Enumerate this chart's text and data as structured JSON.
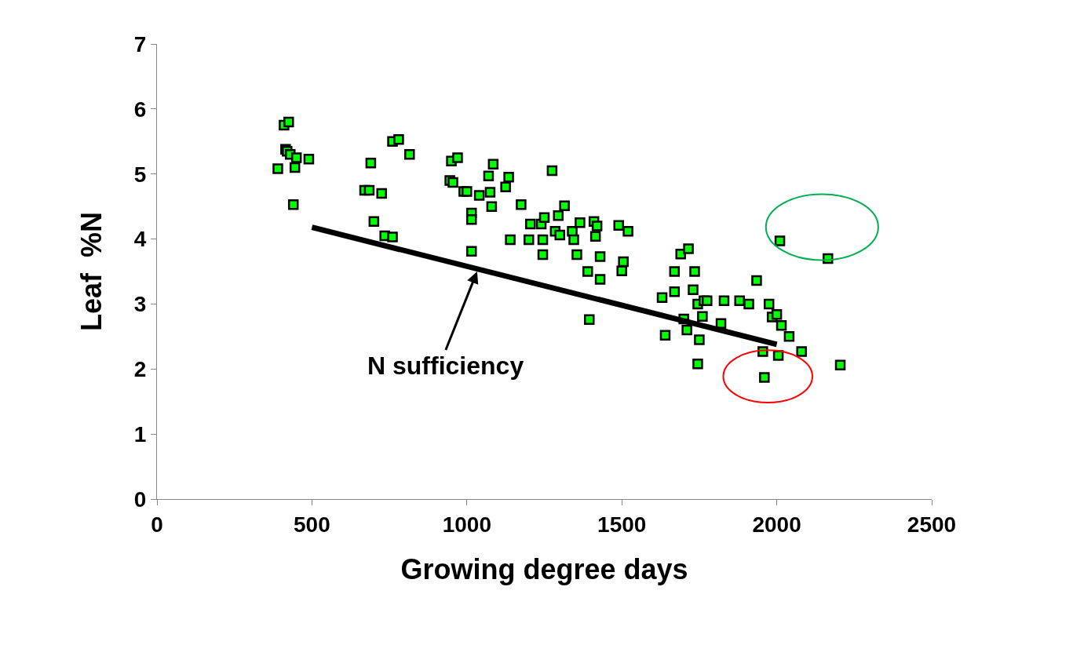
{
  "chart_data": {
    "type": "scatter",
    "xlabel": "Growing degree days",
    "ylabel": "Leaf  %N",
    "xlim": [
      0,
      2500
    ],
    "xticks": [
      0,
      500,
      1000,
      1500,
      2000,
      2500
    ],
    "ylim": [
      0,
      7
    ],
    "yticks": [
      0,
      1,
      2,
      3,
      4,
      5,
      6,
      7
    ],
    "marker": "square",
    "annotations": [
      {
        "text": "N sufficiency",
        "x": 1033,
        "y": 3.5
      }
    ],
    "series": [
      {
        "color": "#00ff00",
        "x": [
          390,
          410,
          425,
          415,
          420,
          430,
          450,
          445,
          440,
          490,
          670,
          685,
          690,
          700,
          725,
          735,
          760,
          760,
          780,
          815,
          945,
          950,
          955,
          970,
          990,
          1000,
          1015,
          1015,
          1015,
          1040,
          1070,
          1075,
          1080,
          1085,
          1125,
          1135,
          1140,
          1175,
          1200,
          1205,
          1240,
          1245,
          1245,
          1250,
          1275,
          1285,
          1295,
          1300,
          1315,
          1340,
          1345,
          1355,
          1365,
          1390,
          1395,
          1410,
          1415,
          1420,
          1430,
          1430,
          1490,
          1500,
          1505,
          1520,
          1630,
          1640,
          1670,
          1670,
          1690,
          1700,
          1710,
          1715,
          1730,
          1735,
          1745,
          1745,
          1750,
          1760,
          1765,
          1775,
          1820,
          1830,
          1880,
          1910,
          1935,
          1955,
          1960,
          1975,
          1985,
          2000,
          2005,
          2010,
          2015,
          2040,
          2080,
          2165,
          2205
        ],
        "values": [
          5.08,
          5.75,
          5.8,
          5.38,
          5.35,
          5.3,
          5.25,
          5.1,
          4.53,
          5.23,
          4.75,
          4.75,
          5.17,
          4.27,
          4.7,
          4.05,
          4.03,
          5.5,
          5.53,
          5.3,
          4.9,
          5.2,
          4.87,
          5.25,
          4.73,
          4.73,
          4.4,
          4.3,
          3.81,
          4.67,
          4.97,
          4.72,
          4.5,
          5.15,
          4.8,
          4.95,
          3.99,
          4.53,
          3.99,
          4.23,
          4.23,
          3.99,
          3.76,
          4.33,
          5.05,
          4.12,
          4.36,
          4.06,
          4.51,
          4.12,
          3.99,
          3.76,
          4.25,
          3.5,
          2.76,
          4.27,
          4.04,
          4.2,
          3.38,
          3.73,
          4.21,
          3.51,
          3.65,
          4.12,
          3.1,
          2.52,
          3.19,
          3.5,
          3.77,
          2.77,
          2.6,
          3.85,
          3.22,
          3.5,
          2.08,
          3.0,
          2.45,
          2.81,
          3.05,
          3.05,
          2.7,
          3.05,
          3.05,
          3.0,
          3.36,
          2.27,
          1.87,
          3.0,
          2.8,
          2.84,
          2.21,
          3.97,
          2.67,
          2.5,
          2.27,
          3.7,
          2.06
        ]
      },
      {
        "type": "line",
        "color": "#000000",
        "marker": "none",
        "x": [
          500,
          2000
        ],
        "values": [
          4.18,
          2.38
        ]
      }
    ]
  }
}
